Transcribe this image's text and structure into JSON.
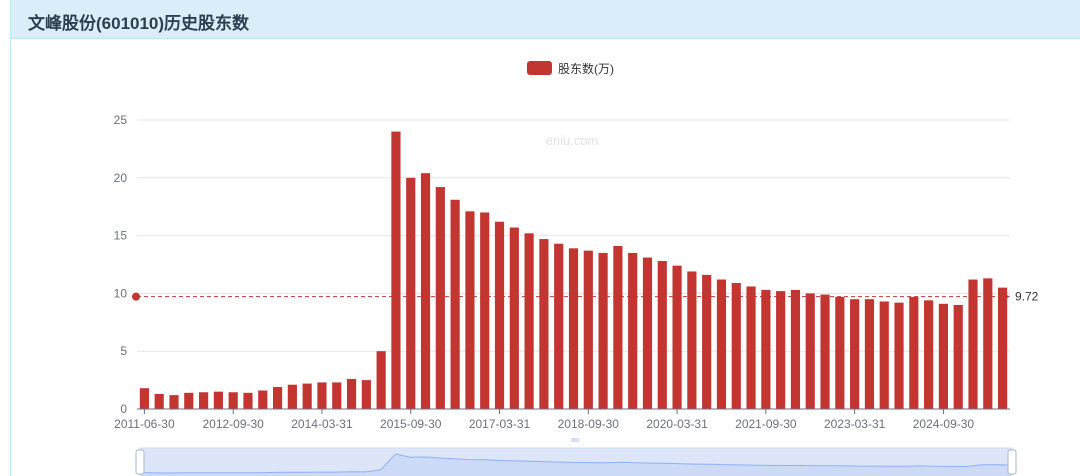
{
  "panel": {
    "title": "文峰股份(601010)历史股东数"
  },
  "watermark": "eniu.com",
  "colors": {
    "bar": "#c23531",
    "slider_bg": "#dde6f8",
    "slider_line": "#8fb0f7",
    "axis": "#6e7079",
    "grid": "#e6e6e6"
  },
  "chart_data": {
    "type": "bar",
    "legend": [
      "股东数(万)"
    ],
    "legend_position": "top-center",
    "grid": true,
    "ylim": [
      0,
      25
    ],
    "yticks": [
      0,
      5,
      10,
      15,
      20,
      25
    ],
    "x_tick_labels": [
      "2011-06-30",
      "2012-09-30",
      "2014-03-31",
      "2015-09-30",
      "2017-03-31",
      "2018-09-30",
      "2020-03-31",
      "2021-09-30",
      "2023-03-31",
      "2024-09-30"
    ],
    "series": [
      {
        "name": "股东数(万)",
        "values": [
          1.8,
          1.3,
          1.2,
          1.4,
          1.45,
          1.5,
          1.45,
          1.4,
          1.6,
          1.9,
          2.1,
          2.2,
          2.3,
          2.3,
          2.6,
          2.5,
          5.0,
          24.0,
          20.0,
          20.4,
          19.2,
          18.1,
          17.1,
          17.0,
          16.2,
          15.7,
          15.2,
          14.7,
          14.3,
          13.9,
          13.7,
          13.5,
          14.1,
          13.5,
          13.1,
          12.8,
          12.4,
          11.9,
          11.6,
          11.2,
          10.9,
          10.6,
          10.3,
          10.2,
          10.3,
          10.0,
          9.9,
          9.7,
          9.5,
          9.5,
          9.3,
          9.2,
          9.7,
          9.4,
          9.1,
          9.0,
          11.2,
          11.3,
          10.5
        ]
      }
    ],
    "mark_line": {
      "value": 9.72,
      "label": "9.72"
    }
  }
}
